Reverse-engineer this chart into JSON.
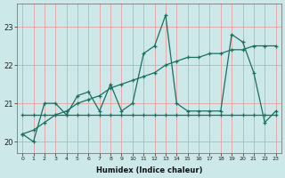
{
  "x": [
    0,
    1,
    2,
    3,
    4,
    5,
    6,
    7,
    8,
    9,
    10,
    11,
    12,
    13,
    14,
    15,
    16,
    17,
    18,
    19,
    20,
    21,
    22,
    23
  ],
  "line_zigzag": [
    20.2,
    20.0,
    21.0,
    21.0,
    20.7,
    21.2,
    21.3,
    20.8,
    21.5,
    20.8,
    21.0,
    22.3,
    22.5,
    23.3,
    21.0,
    20.8,
    20.8,
    20.8,
    20.8,
    22.8,
    22.6,
    21.8,
    20.5,
    20.8
  ],
  "line_trend": [
    20.2,
    20.3,
    20.5,
    20.7,
    20.8,
    21.0,
    21.1,
    21.2,
    21.4,
    21.5,
    21.6,
    21.7,
    21.8,
    22.0,
    22.1,
    22.2,
    22.2,
    22.3,
    22.3,
    22.4,
    22.4,
    22.5,
    22.5,
    22.5
  ],
  "line_flat": [
    20.7,
    20.7,
    20.7,
    20.7,
    20.7,
    20.7,
    20.7,
    20.7,
    20.7,
    20.7,
    20.7,
    20.7,
    20.7,
    20.7,
    20.7,
    20.7,
    20.7,
    20.7,
    20.7,
    20.7,
    20.7,
    20.7,
    20.7,
    20.7
  ],
  "line_color": "#1a7060",
  "bg_color": "#cce8e8",
  "grid_color": "#e8a0a0",
  "ylabel_values": [
    20,
    21,
    22,
    23
  ],
  "xlabel": "Humidex (Indice chaleur)",
  "xlim": [
    -0.5,
    23.5
  ],
  "ylim": [
    19.7,
    23.6
  ]
}
